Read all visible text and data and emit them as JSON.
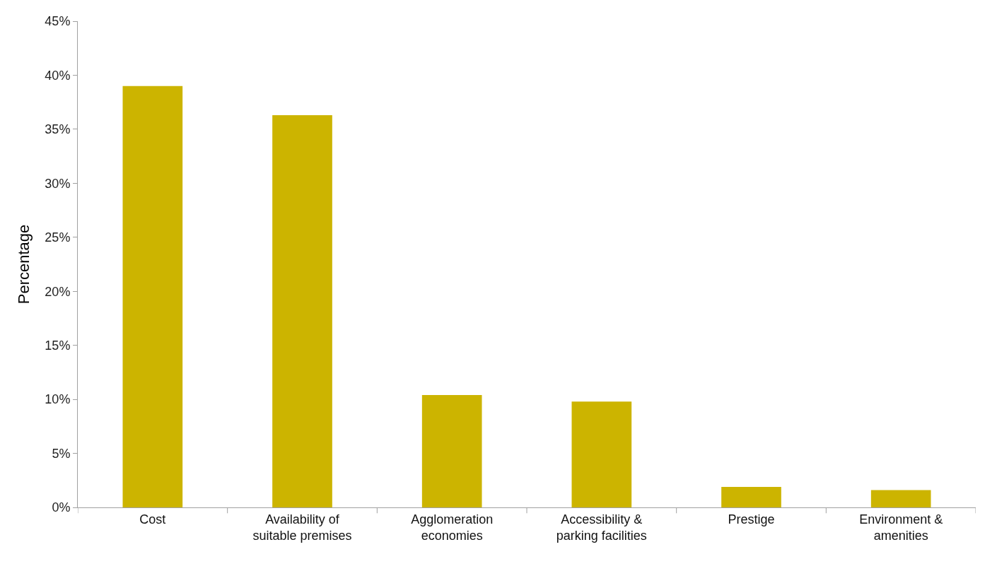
{
  "chart_data": {
    "type": "bar",
    "ylabel": "Percentage",
    "categories": [
      "Cost",
      "Availability of\nsuitable premises",
      "Agglomeration\neconomies",
      "Accessibility &\nparking facilities",
      "Prestige",
      "Environment &\namenities"
    ],
    "values": [
      39.0,
      36.3,
      10.4,
      9.8,
      1.9,
      1.6
    ],
    "color": "#ccb400",
    "ylim": [
      0,
      45
    ],
    "yticks": [
      {
        "value": 0,
        "label": "0%"
      },
      {
        "value": 5,
        "label": "5%"
      },
      {
        "value": 10,
        "label": "10%"
      },
      {
        "value": 15,
        "label": "15%"
      },
      {
        "value": 20,
        "label": "20%"
      },
      {
        "value": 25,
        "label": "25%"
      },
      {
        "value": 30,
        "label": "30%"
      },
      {
        "value": 35,
        "label": "35%"
      },
      {
        "value": 40,
        "label": "40%"
      },
      {
        "value": 45,
        "label": "45%"
      }
    ]
  }
}
